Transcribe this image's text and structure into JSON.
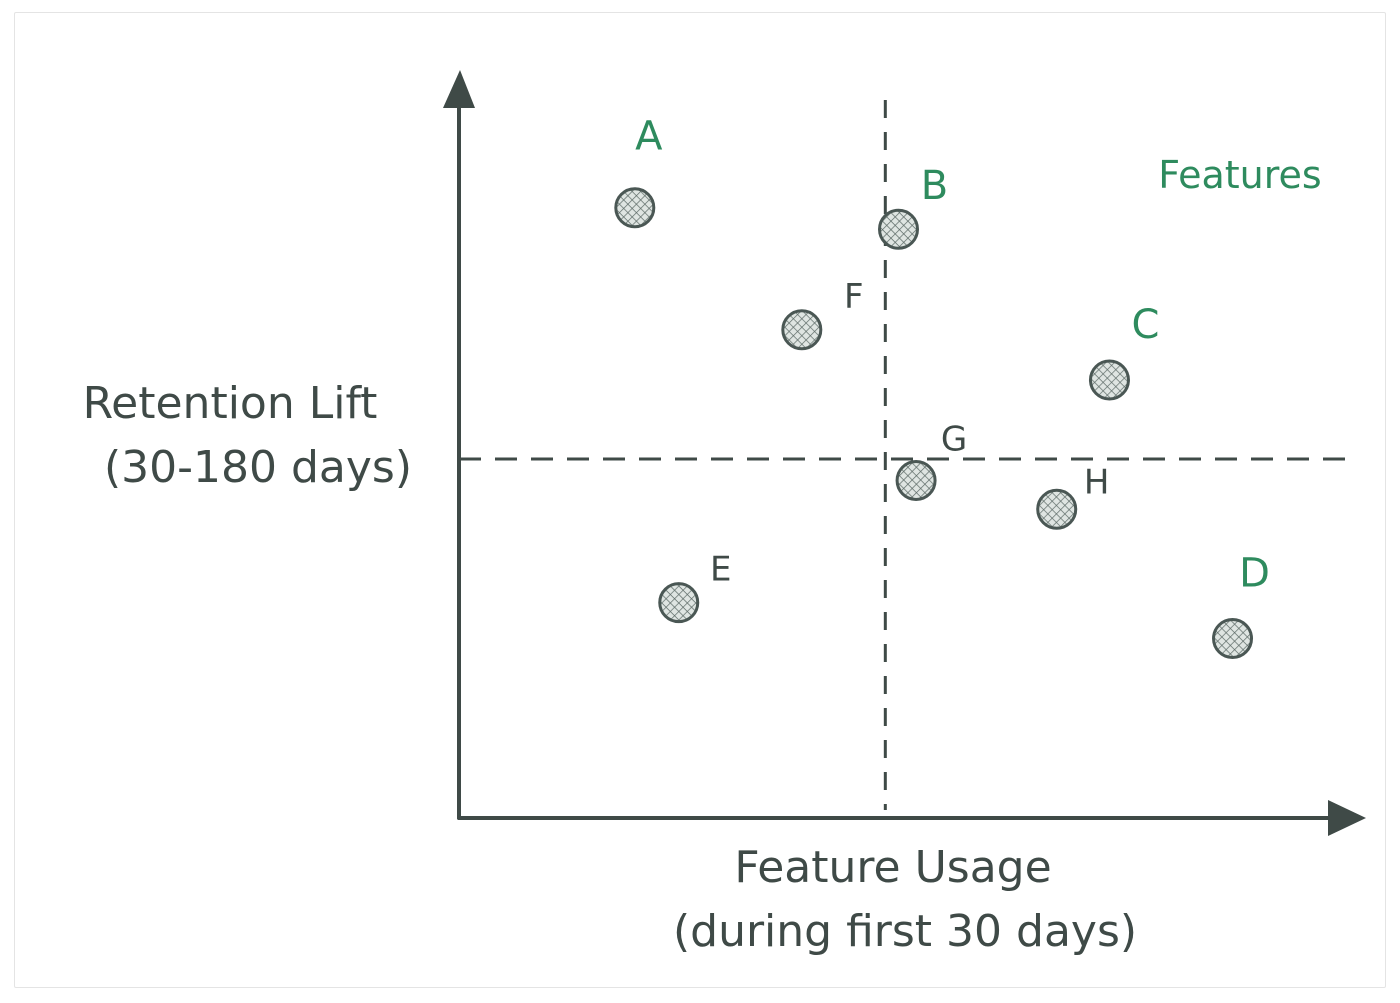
{
  "chart_data": {
    "type": "scatter",
    "title": "",
    "legend": "Features",
    "legend_position": "top-right",
    "xlabel_line1": "Feature Usage",
    "xlabel_line2": "(during first 30 days)",
    "ylabel_line1": "Retention Lift",
    "ylabel_line2": "(30-180 days)",
    "xlim": [
      0,
      100
    ],
    "ylim": [
      0,
      100
    ],
    "grid": false,
    "quadrant_dividers": {
      "x": 48.5,
      "y": 50
    },
    "points": [
      {
        "label": "A",
        "x": 20,
        "y": 85,
        "label_color": "#2e8b5e"
      },
      {
        "label": "B",
        "x": 50,
        "y": 82,
        "label_color": "#2e8b5e"
      },
      {
        "label": "C",
        "x": 74,
        "y": 61,
        "label_color": "#2e8b5e"
      },
      {
        "label": "D",
        "x": 88,
        "y": 25,
        "label_color": "#2e8b5e"
      },
      {
        "label": "E",
        "x": 25,
        "y": 30,
        "label_color": "#3f4a47"
      },
      {
        "label": "F",
        "x": 39,
        "y": 68,
        "label_color": "#3f4a47"
      },
      {
        "label": "G",
        "x": 52,
        "y": 47,
        "label_color": "#3f4a47"
      },
      {
        "label": "H",
        "x": 68,
        "y": 43,
        "label_color": "#3f4a47"
      }
    ],
    "colors": {
      "axis": "#3f4a47",
      "point_stroke": "#4a5754",
      "point_fill": "#d4dbd8"
    }
  }
}
